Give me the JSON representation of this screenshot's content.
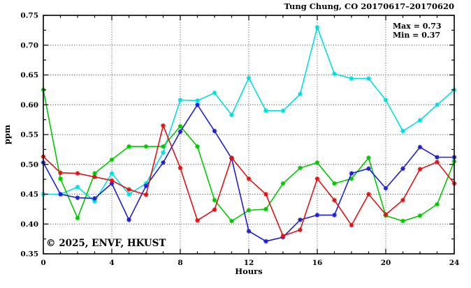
{
  "title": "Tung Chung, CO 20170617–20170620",
  "annotation": {
    "max_label": "Max = 0.73",
    "min_label": "Min = 0.37"
  },
  "watermark": "© 2025, ENVF, HKUST",
  "chart_data": {
    "type": "line",
    "title": "Tung Chung, CO 20170617–20170620",
    "xlabel": "Hours",
    "ylabel": "ppm",
    "xlim": [
      0,
      24
    ],
    "ylim": [
      0.35,
      0.75
    ],
    "xticks": [
      0,
      4,
      8,
      12,
      16,
      20,
      24
    ],
    "xtick_minor_step": 1,
    "yticks": [
      0.35,
      0.4,
      0.45,
      0.5,
      0.55,
      0.6,
      0.65,
      0.7,
      0.75
    ],
    "ytick_minor_step": 0.025,
    "grid": true,
    "grid_x": [
      4,
      8,
      12,
      16,
      20
    ],
    "grid_y": [
      0.4,
      0.45,
      0.5,
      0.55,
      0.6,
      0.65,
      0.7
    ],
    "legend": "none",
    "marker": "star",
    "stats": {
      "max": 0.73,
      "min": 0.37
    },
    "x": [
      0,
      1,
      2,
      3,
      4,
      5,
      6,
      7,
      8,
      9,
      10,
      11,
      12,
      13,
      14,
      15,
      16,
      17,
      18,
      19,
      20,
      21,
      22,
      23,
      24
    ],
    "series": [
      {
        "name": "day-1-cyan",
        "color": "#00dede",
        "values": [
          0.45,
          0.45,
          0.462,
          0.438,
          0.485,
          0.45,
          0.468,
          0.52,
          0.608,
          0.607,
          0.62,
          0.583,
          0.645,
          0.59,
          0.59,
          0.618,
          0.73,
          0.652,
          0.644,
          0.644,
          0.608,
          0.556,
          0.574,
          0.6,
          0.625
        ]
      },
      {
        "name": "day-2-green",
        "color": "#00c800",
        "values": [
          0.625,
          0.476,
          0.41,
          0.485,
          0.508,
          0.53,
          0.53,
          0.53,
          0.564,
          0.53,
          0.44,
          0.405,
          0.423,
          0.425,
          0.468,
          0.494,
          0.503,
          0.468,
          0.476,
          0.511,
          0.414,
          0.405,
          0.414,
          0.433,
          0.505
        ]
      },
      {
        "name": "day-3-blue",
        "color": "#1e1ed2",
        "values": [
          0.503,
          0.45,
          0.444,
          0.443,
          0.468,
          0.407,
          0.464,
          0.503,
          0.555,
          0.6,
          0.556,
          0.51,
          0.388,
          0.371,
          0.378,
          0.407,
          0.415,
          0.415,
          0.485,
          0.493,
          0.46,
          0.493,
          0.529,
          0.512,
          0.512
        ]
      },
      {
        "name": "day-4-red",
        "color": "#dc1414",
        "values": [
          0.513,
          0.486,
          0.485,
          0.479,
          0.473,
          0.458,
          0.449,
          0.565,
          0.494,
          0.406,
          0.424,
          0.511,
          0.476,
          0.45,
          0.38,
          0.39,
          0.476,
          0.44,
          0.398,
          0.45,
          0.416,
          0.44,
          0.492,
          0.504,
          0.468
        ]
      }
    ]
  }
}
